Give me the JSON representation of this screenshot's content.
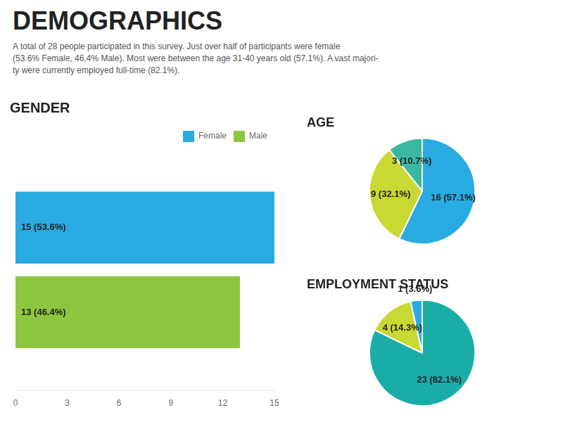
{
  "title": "DEMOGRAPHICS",
  "subtitle": "A total of 28 people participated in this survey. Just over half of participants were female\n(53.6% Female, 46.4% Male). Most were between the age 31-40 years old (57.1%). A vast majori-\nty were currently employed full-time (82.1%).",
  "chart_data": [
    {
      "type": "bar",
      "title": "GENDER",
      "orientation": "horizontal",
      "categories": [
        null
      ],
      "series": [
        {
          "name": "Female",
          "color": "#29ABE2",
          "values": [
            15
          ],
          "value_labels": [
            "15 (53.6%)"
          ]
        },
        {
          "name": "Male",
          "color": "#8DC63F",
          "values": [
            13
          ],
          "value_labels": [
            "13 (46.4%)"
          ]
        }
      ],
      "xlim": [
        0,
        15
      ],
      "xticks": [
        0,
        3,
        6,
        9,
        12,
        15
      ],
      "tick_labels": "x",
      "grid": false,
      "legend": "upper right",
      "data_labels": true
    },
    {
      "type": "pie",
      "title": "AGE",
      "values": [
        16,
        9,
        3
      ],
      "value_labels": [
        "16 (57.1%)",
        "9 (32.1%)",
        "3 (10.7%)"
      ],
      "colors": [
        "#29ABE2",
        "#C8D933",
        "#3BB8A0"
      ],
      "data_labels": true
    },
    {
      "type": "pie",
      "title": "EMPLOYMENT STATUS",
      "values": [
        23,
        4,
        1
      ],
      "value_labels": [
        "23 (82.1%)",
        "4 (14.3%)",
        "1 (3.6%)"
      ],
      "colors": [
        "#1AADA8",
        "#C8D933",
        "#29ABE2"
      ],
      "data_labels": true
    }
  ]
}
